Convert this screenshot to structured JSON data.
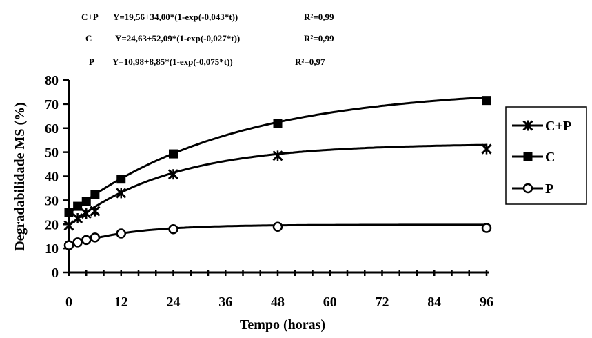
{
  "equations": [
    {
      "label": "C+P",
      "formula": "Y=19,56+34,00*(1-exp(-0,043*t))",
      "r2": "R²=0,99"
    },
    {
      "label": "C",
      "formula": "Y=24,63+52,09*(1-exp(-0,027*t))",
      "r2": "R²=0,99"
    },
    {
      "label": "P",
      "formula": "Y=10,98+8,85*(1-exp(-0,075*t))",
      "r2": "R²=0,97"
    }
  ],
  "chart_data": {
    "type": "line",
    "xlabel": "Tempo (horas)",
    "ylabel": "Degradabilidade MS (%)",
    "x_tick_labels": [
      "0",
      "12",
      "24",
      "36",
      "48",
      "60",
      "72",
      "84",
      "96"
    ],
    "y_tick_labels": [
      "0",
      "10",
      "20",
      "30",
      "40",
      "50",
      "60",
      "70",
      "80"
    ],
    "xlim": [
      0,
      96
    ],
    "ylim": [
      0,
      80
    ],
    "grid": false,
    "legend_position": "right",
    "series": [
      {
        "name": "C+P",
        "marker": "x-star",
        "x": [
          0,
          2,
          4,
          6,
          12,
          24,
          48,
          96
        ],
        "y": [
          19.5,
          22.5,
          24.5,
          25.5,
          33,
          40.8,
          48.5,
          51.3
        ]
      },
      {
        "name": "C",
        "marker": "filled-square",
        "x": [
          0,
          2,
          4,
          6,
          12,
          24,
          48,
          96
        ],
        "y": [
          25,
          27.5,
          29.5,
          32.5,
          38.8,
          49.3,
          61.8,
          71.5
        ]
      },
      {
        "name": "P",
        "marker": "open-circle",
        "x": [
          0,
          2,
          4,
          6,
          12,
          24,
          48,
          96
        ],
        "y": [
          11.3,
          12.5,
          13.5,
          14.5,
          16.2,
          18,
          19,
          18.5
        ]
      }
    ],
    "curves": [
      {
        "series": "C+P",
        "a": 19.56,
        "b": 34.0,
        "c": 0.043
      },
      {
        "series": "C",
        "a": 24.63,
        "b": 52.09,
        "c": 0.027
      },
      {
        "series": "P",
        "a": 10.98,
        "b": 8.85,
        "c": 0.075
      }
    ]
  }
}
